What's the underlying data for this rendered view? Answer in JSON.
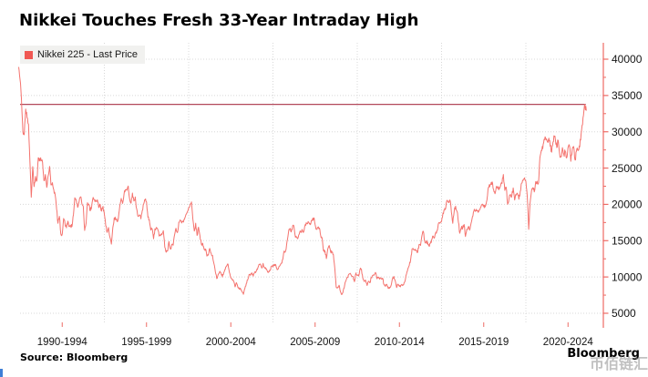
{
  "header": {
    "title": "Nikkei Touches Fresh 33-Year Intraday High"
  },
  "legend": {
    "label": "Nikkei 225 - Last Price",
    "swatch_color": "#f05752"
  },
  "footer": {
    "source": "Source: Bloomberg",
    "brand": "Bloomberg",
    "watermark": "币佰链汇"
  },
  "colors": {
    "line": "#f4736e",
    "axis": "#ee6a64",
    "reference_line": "#b2495a",
    "grid": "#d8d8d8",
    "text": "#141414",
    "corner_artifact": "#3f7fd6"
  },
  "chart_data": {
    "type": "line",
    "title": "Nikkei Touches Fresh 33-Year Intraday High",
    "legend_position": "top-left",
    "grid": "dotted",
    "y_axis": {
      "side": "right",
      "ticks": [
        5000,
        10000,
        15000,
        20000,
        25000,
        30000,
        35000,
        40000
      ],
      "minor_tick_step": 2500,
      "range": [
        2900,
        42300
      ]
    },
    "x_axis": {
      "labels": [
        "1990-1994",
        "1995-1999",
        "2000-2004",
        "2005-2009",
        "2010-2014",
        "2015-2019",
        "2020-2024"
      ],
      "gridline_years": [
        1995,
        2000,
        2005,
        2010,
        2015,
        2020
      ],
      "range_years": [
        1989.9,
        2024.5
      ]
    },
    "reference_line": {
      "value": 33772
    },
    "series": [
      {
        "name": "Nikkei 225 - Last Price",
        "start_year": 1989.9167,
        "step_years": 0.083333,
        "values": [
          38916,
          37189,
          34592,
          29980,
          29584,
          33131,
          31940,
          31036,
          25978,
          20984,
          25194,
          22455,
          23849,
          23293,
          26409,
          26292,
          26111,
          25790,
          23291,
          24121,
          22336,
          23916,
          25222,
          22687,
          22984,
          22023,
          21339,
          19346,
          17391,
          18348,
          15952,
          15910,
          18061,
          17399,
          16767,
          17684,
          16925,
          17024,
          16953,
          18591,
          20919,
          20552,
          19590,
          20380,
          21027,
          20106,
          19703,
          16406,
          17417,
          20229,
          19997,
          19112,
          19725,
          20974,
          20644,
          20449,
          20629,
          19564,
          19990,
          19071,
          19723,
          18650,
          17053,
          16140,
          16807,
          15437,
          14517,
          16807,
          18117,
          17913,
          17655,
          18109,
          19868,
          20813,
          20123,
          21407,
          22041,
          21936,
          22531,
          20693,
          20167,
          21556,
          20467,
          21021,
          19361,
          18330,
          18557,
          18003,
          19151,
          20069,
          20605,
          20331,
          18229,
          17888,
          16459,
          16636,
          15259,
          16628,
          16832,
          16527,
          15641,
          15671,
          15830,
          16379,
          14108,
          13406,
          13565,
          14884,
          13842,
          14500,
          14368,
          15837,
          16702,
          16112,
          17530,
          17861,
          17430,
          17605,
          17942,
          18559,
          18934,
          19540,
          19959,
          20337,
          17974,
          16332,
          17411,
          15727,
          16861,
          15747,
          14540,
          14649,
          13786,
          13844,
          12884,
          12999,
          13934,
          13262,
          12969,
          11861,
          10714,
          9775,
          10366,
          10697,
          10543,
          9998,
          10588,
          11025,
          11493,
          11764,
          10622,
          9878,
          9619,
          9383,
          8640,
          9216,
          8579,
          8340,
          8363,
          7973,
          7607,
          8425,
          9083,
          9563,
          10343,
          10219,
          10559,
          10100,
          10677,
          10784,
          11041,
          11715,
          11762,
          11236,
          11858,
          11326,
          11082,
          10824,
          10772,
          10899,
          11489,
          11388,
          11740,
          11669,
          11009,
          11276,
          11584,
          11900,
          12414,
          13574,
          13606,
          14872,
          16111,
          16649,
          16205,
          17060,
          16906,
          15467,
          15505,
          15457,
          16141,
          16128,
          16399,
          16274,
          17226,
          17383,
          17604,
          17288,
          17400,
          17876,
          18138,
          17249,
          16569,
          16786,
          16738,
          15681,
          15308,
          13592,
          13603,
          12526,
          13850,
          14339,
          13481,
          13377,
          13073,
          11260,
          8577,
          8512,
          8860,
          7994,
          7568,
          8110,
          8828,
          9523,
          9958,
          10357,
          10493,
          10133,
          10035,
          9346,
          10546,
          10198,
          10126,
          11090,
          11057,
          9769,
          9383,
          9537,
          8824,
          9369,
          9202,
          9937,
          10229,
          10238,
          10624,
          9755,
          9850,
          9694,
          9816,
          9833,
          8955,
          8700,
          8988,
          8435,
          8455,
          8803,
          9723,
          10084,
          9521,
          8543,
          9007,
          8695,
          8840,
          8870,
          8928,
          9446,
          10395,
          11139,
          11559,
          12398,
          13861,
          13775,
          13677,
          13668,
          13389,
          14456,
          14328,
          15662,
          16291,
          14915,
          14841,
          14828,
          14304,
          14632,
          15162,
          15621,
          15425,
          16174,
          16414,
          17460,
          17451,
          17674,
          18798,
          19207,
          19520,
          20563,
          20236,
          20585,
          18890,
          17388,
          19083,
          19747,
          19034,
          17518,
          16027,
          16759,
          16666,
          17235,
          15576,
          16569,
          16887,
          16450,
          17425,
          18308,
          19114,
          19041,
          19119,
          18909,
          19197,
          19651,
          20033,
          19925,
          19646,
          20356,
          22012,
          22725,
          22765,
          23098,
          22068,
          21454,
          22468,
          22202,
          22305,
          22554,
          22865,
          24120,
          21920,
          22351,
          20015,
          20773,
          21385,
          21206,
          22259,
          20601,
          21276,
          21522,
          20704,
          21756,
          22927,
          23294,
          23657,
          23205,
          21143,
          16553,
          20194,
          21878,
          22288,
          21710,
          23140,
          23185,
          22977,
          26434,
          27444,
          27663,
          28966,
          29179,
          28813,
          28860,
          28792,
          27284,
          28090,
          29453,
          28893,
          27822,
          28792,
          27002,
          26527,
          27821,
          26848,
          27280,
          26393,
          27802,
          28092,
          25937,
          27587,
          27968,
          26095,
          27327,
          27446,
          28041,
          28856,
          30888,
          32265,
          33772,
          32900
        ]
      }
    ]
  }
}
